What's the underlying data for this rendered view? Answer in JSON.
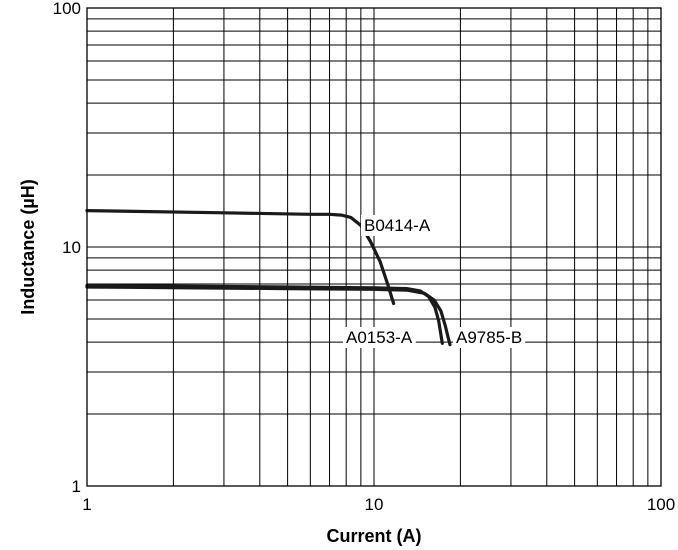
{
  "chart_data": {
    "type": "line",
    "title": "",
    "xlabel": "Current (A)",
    "ylabel": "Inductance (µH)",
    "x_scale": "log",
    "y_scale": "log",
    "xlim": [
      1,
      100
    ],
    "ylim": [
      1,
      100
    ],
    "grid": true,
    "x_ticks": [
      {
        "value": 1,
        "label": "1"
      },
      {
        "value": 10,
        "label": "10"
      },
      {
        "value": 100,
        "label": "100"
      }
    ],
    "y_ticks": [
      {
        "value": 1,
        "label": "1"
      },
      {
        "value": 10,
        "label": "10"
      },
      {
        "value": 100,
        "label": "100"
      }
    ],
    "series": [
      {
        "name": "B0414-A",
        "x": [
          1,
          3,
          6,
          7,
          7.7,
          8.3,
          9,
          9.7,
          10.5,
          11.2,
          11.7
        ],
        "y": [
          14.2,
          13.9,
          13.7,
          13.7,
          13.6,
          13.3,
          12.3,
          10.6,
          8.7,
          6.9,
          5.8
        ]
      },
      {
        "name": "A0153-A",
        "x": [
          1,
          5,
          10,
          13,
          14.5,
          15.5,
          16.3,
          16.8,
          17.1,
          17.3
        ],
        "y": [
          6.9,
          6.8,
          6.75,
          6.7,
          6.55,
          6.2,
          5.6,
          4.9,
          4.3,
          3.95
        ]
      },
      {
        "name": "A9785-B",
        "x": [
          1,
          5,
          10,
          13,
          15,
          16.2,
          17.1,
          17.7,
          18.1,
          18.4
        ],
        "y": [
          6.8,
          6.7,
          6.65,
          6.6,
          6.4,
          6.0,
          5.4,
          4.7,
          4.2,
          3.9
        ]
      }
    ]
  }
}
